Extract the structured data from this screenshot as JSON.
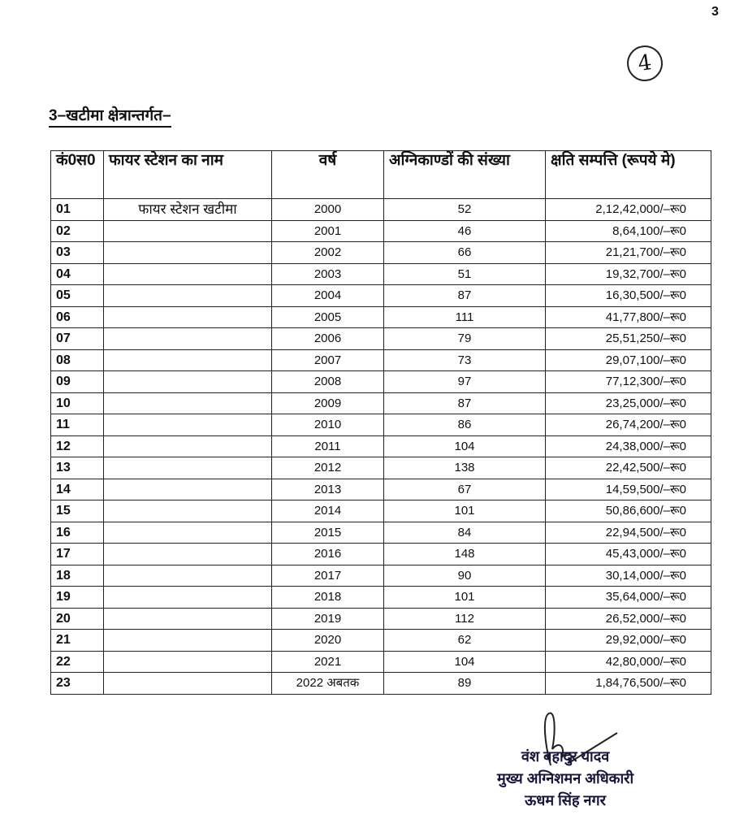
{
  "page_number": "3",
  "circled_mark": "4",
  "section_title": "3–खटीमा क्षेत्रान्तर्गत–",
  "table": {
    "headers": [
      "कं0स0",
      "फायर स्टेशन का नाम",
      "वर्ष",
      "अग्निकाण्डों की संख्या",
      "क्षति सम्पत्ति (रूपये मे)"
    ],
    "rows": [
      [
        "01",
        "फायर स्टेशन खटीमा",
        "2000",
        "52",
        "2,12,42,000/–रू0"
      ],
      [
        "02",
        "",
        "2001",
        "46",
        "8,64,100/–रू0"
      ],
      [
        "03",
        "",
        "2002",
        "66",
        "21,21,700/–रू0"
      ],
      [
        "04",
        "",
        "2003",
        "51",
        "19,32,700/–रू0"
      ],
      [
        "05",
        "",
        "2004",
        "87",
        "16,30,500/–रू0"
      ],
      [
        "06",
        "",
        "2005",
        "111",
        "41,77,800/–रू0"
      ],
      [
        "07",
        "",
        "2006",
        "79",
        "25,51,250/–रू0"
      ],
      [
        "08",
        "",
        "2007",
        "73",
        "29,07,100/–रू0"
      ],
      [
        "09",
        "",
        "2008",
        "97",
        "77,12,300/–रू0"
      ],
      [
        "10",
        "",
        "2009",
        "87",
        "23,25,000/–रू0"
      ],
      [
        "11",
        "",
        "2010",
        "86",
        "26,74,200/–रू0"
      ],
      [
        "12",
        "",
        "2011",
        "104",
        "24,38,000/–रू0"
      ],
      [
        "13",
        "",
        "2012",
        "138",
        "22,42,500/–रू0"
      ],
      [
        "14",
        "",
        "2013",
        "67",
        "14,59,500/–रू0"
      ],
      [
        "15",
        "",
        "2014",
        "101",
        "50,86,600/–रू0"
      ],
      [
        "16",
        "",
        "2015",
        "84",
        "22,94,500/–रू0"
      ],
      [
        "17",
        "",
        "2016",
        "148",
        "45,43,000/–रू0"
      ],
      [
        "18",
        "",
        "2017",
        "90",
        "30,14,000/–रू0"
      ],
      [
        "19",
        "",
        "2018",
        "101",
        "35,64,000/–रू0"
      ],
      [
        "20",
        "",
        "2019",
        "112",
        "26,52,000/–रू0"
      ],
      [
        "21",
        "",
        "2020",
        "62",
        "29,92,000/–रू0"
      ],
      [
        "22",
        "",
        "2021",
        "104",
        "42,80,000/–रू0"
      ],
      [
        "23",
        "",
        "2022 अबतक",
        "89",
        "1,84,76,500/–रू0"
      ]
    ]
  },
  "signature": {
    "name": "वंश बहादुर यादव",
    "designation": "मुख्य अग्निशमन अधिकारी",
    "location": "ऊधम सिंह नगर"
  }
}
